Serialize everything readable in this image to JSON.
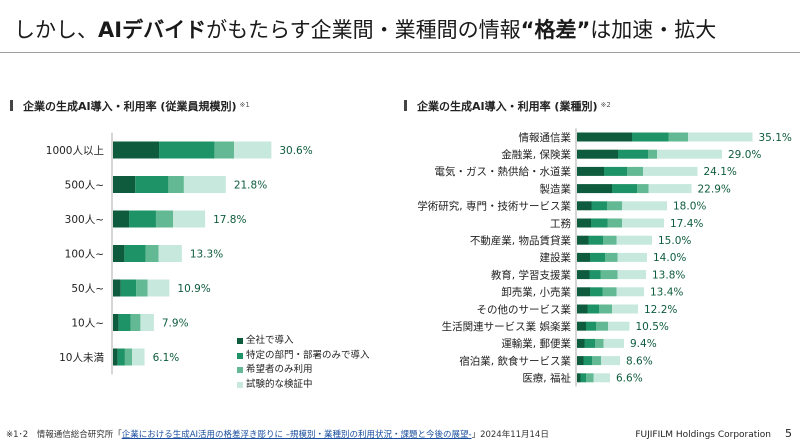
{
  "title": {
    "prefix": "しかし、",
    "bold1": "AIデバイド",
    "middle": "がもたらす企業間・業種間の情報",
    "bold2": "“格差”",
    "suffix": "は加速・拡大"
  },
  "colors": {
    "full": "#0e5c3d",
    "dept": "#1e9367",
    "hope": "#63b994",
    "trial": "#c7e8dc",
    "value_text": "#0e5c3d"
  },
  "chart_data": [
    {
      "type": "bar",
      "orientation": "horizontal",
      "stacked": true,
      "title": "企業の生成AI導入・利用率 (従業員規模別)",
      "title_note": "※1",
      "categories": [
        "1000人以上",
        "500人~",
        "300人~",
        "100人~",
        "50人~",
        "10人~",
        "10人未満"
      ],
      "series": [
        {
          "name": "全社で導入",
          "values": [
            8.9,
            4.3,
            3.1,
            2.2,
            1.5,
            1.1,
            0.9
          ]
        },
        {
          "name": "特定の部門・部署のみで導入",
          "values": [
            10.7,
            6.4,
            5.2,
            4.1,
            3.0,
            2.3,
            1.4
          ]
        },
        {
          "name": "希望者のみ利用",
          "values": [
            3.8,
            3.0,
            3.3,
            2.5,
            2.2,
            1.9,
            1.4
          ]
        },
        {
          "name": "試験的な検証中",
          "values": [
            7.2,
            8.1,
            6.2,
            4.5,
            4.2,
            2.6,
            2.4
          ]
        }
      ],
      "totals": [
        30.6,
        21.8,
        17.8,
        13.3,
        10.9,
        7.9,
        6.1
      ],
      "total_labels": [
        "30.6%",
        "21.8%",
        "17.8%",
        "13.3%",
        "10.9%",
        "7.9%",
        "6.1%"
      ],
      "xlim": [
        0,
        40
      ],
      "grid": false,
      "legend": "bottom-right"
    },
    {
      "type": "bar",
      "orientation": "horizontal",
      "stacked": true,
      "title": "企業の生成AI導入・利用率 (業種別)",
      "title_note": "※2",
      "categories": [
        "情報通信業",
        "金融業, 保険業",
        "電気・ガス・熱供給・水道業",
        "製造業",
        "学術研究, 専門・技術サービス業",
        "工務",
        "不動産業, 物品賃貸業",
        "建設業",
        "教育, 学習支援業",
        "卸売業, 小売業",
        "その他のサービス業",
        "生活関連サービス業 娯楽業",
        "運輸業, 郵便業",
        "宿泊業, 飲食サービス業",
        "医療, 福祉"
      ],
      "series": [
        {
          "name": "全社で導入",
          "values": [
            11.0,
            8.2,
            5.4,
            7.0,
            2.9,
            2.8,
            2.3,
            2.6,
            2.5,
            2.6,
            2.1,
            1.8,
            1.5,
            1.3,
            0.7
          ]
        },
        {
          "name": "特定の部門・部署のみで導入",
          "values": [
            7.3,
            6.0,
            4.6,
            5.0,
            3.1,
            3.3,
            2.9,
            3.0,
            2.2,
            2.5,
            2.3,
            2.0,
            2.1,
            1.7,
            1.1
          ]
        },
        {
          "name": "希望者のみ利用",
          "values": [
            3.9,
            1.8,
            3.2,
            2.3,
            3.0,
            2.9,
            2.7,
            2.5,
            3.4,
            2.8,
            2.6,
            2.4,
            1.7,
            1.8,
            1.5
          ]
        },
        {
          "name": "試験的な検証中",
          "values": [
            12.9,
            13.0,
            10.9,
            8.6,
            9.0,
            8.4,
            7.1,
            5.9,
            5.7,
            5.5,
            5.2,
            4.3,
            4.1,
            3.8,
            3.3
          ]
        }
      ],
      "totals": [
        35.1,
        29.0,
        24.1,
        22.9,
        18.0,
        17.4,
        15.0,
        14.0,
        13.8,
        13.4,
        12.2,
        10.5,
        9.4,
        8.6,
        6.6
      ],
      "total_labels": [
        "35.1%",
        "29.0%",
        "24.1%",
        "22.9%",
        "18.0%",
        "17.4%",
        "15.0%",
        "14.0%",
        "13.8%",
        "13.4%",
        "12.2%",
        "10.5%",
        "9.4%",
        "8.6%",
        "6.6%"
      ],
      "xlim": [
        0,
        40
      ],
      "grid": false,
      "legend": "none"
    }
  ],
  "legend_items": [
    "全社で導入",
    "特定の部門・部署のみで導入",
    "希望者のみ利用",
    "試験的な検証中"
  ],
  "footer": {
    "note": "※1･2　情報通信総合研究所「",
    "link": "企業における生成AI活用の格差浮き彫りに –規模別・業種別の利用状況・課題と今後の展望-",
    "suffix": "」2024年11月14日",
    "company": "FUJIFILM Holdings Corporation",
    "page": "5"
  }
}
